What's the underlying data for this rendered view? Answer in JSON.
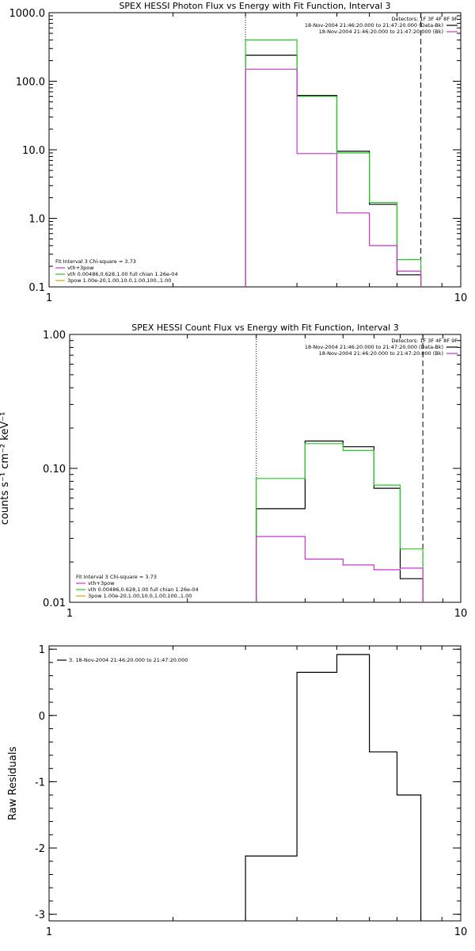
{
  "chart_data": [
    {
      "type": "line",
      "title": "SPEX HESSI Photon Flux vs Energy with Fit Function, Interval 3",
      "xscale": "log",
      "yscale": "log",
      "xlim": [
        1,
        10
      ],
      "ylim": [
        0.1,
        1000
      ],
      "xticks": [
        {
          "value": 1,
          "label": "1"
        },
        {
          "value": 10,
          "label": "10"
        }
      ],
      "yticks": [
        {
          "value": 0.1,
          "label": "0.1"
        },
        {
          "value": 1,
          "label": "1.0"
        },
        {
          "value": 10,
          "label": "10.0"
        },
        {
          "value": 100,
          "label": "100.0"
        },
        {
          "value": 1000,
          "label": "1000.0"
        }
      ],
      "xlabel": "",
      "ylabel": "",
      "vlines": [
        {
          "x": 3,
          "style": "dotted"
        },
        {
          "x": 8,
          "style": "dashed"
        }
      ],
      "bin_edges": [
        3,
        4,
        5,
        6,
        7,
        8
      ],
      "series": [
        {
          "color": "#000000",
          "values": [
            240,
            62,
            9.5,
            1.6,
            0.15
          ]
        },
        {
          "color": "#22cc22",
          "values": [
            400,
            60,
            9.0,
            1.7,
            0.25
          ]
        },
        {
          "color": "#cc33cc",
          "values": [
            150,
            8.8,
            1.2,
            0.4,
            0.17
          ]
        }
      ],
      "legend_top_right": [
        {
          "text": "Detectors: 1F 3F 4F 8F 9F",
          "color": ""
        },
        {
          "text": "18-Nov-2004 21:46:20.000 to 21:47:20.000 (Data-Bk)",
          "color": "#000000"
        },
        {
          "text": "18-Nov-2004 21:46:20.000 to 21:47:20.000 (Bk)",
          "color": "#cc33cc"
        }
      ],
      "legend_bottom_left": [
        {
          "text": "Fit Interval 3  Chi-square = 3.73",
          "color": ""
        },
        {
          "text": "vth+3pow",
          "color": "#cc33cc"
        },
        {
          "text": "vth 0.00486,0.628,1.00  full chian 1.26e-04",
          "color": "#22cc22"
        },
        {
          "text": "3pow 1.00e-20,1.00,10.0,1.00,100.,1.00",
          "color": "#ccaa00"
        }
      ]
    },
    {
      "type": "line",
      "title": "SPEX HESSI Count Flux vs Energy with Fit Function, Interval 3",
      "xscale": "log",
      "yscale": "log",
      "xlim": [
        1,
        10
      ],
      "ylim": [
        0.01,
        1
      ],
      "xticks": [
        {
          "value": 1,
          "label": "1"
        },
        {
          "value": 10,
          "label": "10"
        }
      ],
      "yticks": [
        {
          "value": 0.01,
          "label": "0.01"
        },
        {
          "value": 0.1,
          "label": "0.10"
        },
        {
          "value": 1,
          "label": "1.00"
        }
      ],
      "xlabel": "",
      "ylabel": "counts s⁻¹ cm⁻² keV⁻¹",
      "vlines": [
        {
          "x": 3,
          "style": "dotted"
        },
        {
          "x": 8,
          "style": "dashed"
        }
      ],
      "bin_edges": [
        3,
        4,
        5,
        6,
        7,
        8
      ],
      "series": [
        {
          "color": "#000000",
          "values": [
            0.05,
            0.16,
            0.145,
            0.071,
            0.015
          ]
        },
        {
          "color": "#22cc22",
          "values": [
            0.084,
            0.153,
            0.136,
            0.075,
            0.025
          ]
        },
        {
          "color": "#cc33cc",
          "values": [
            0.031,
            0.021,
            0.019,
            0.0175,
            0.018
          ]
        }
      ],
      "legend_top_right": [
        {
          "text": "Detectors: 1F 3F 4F 8F 9F",
          "color": ""
        },
        {
          "text": "18-Nov-2004 21:46:20.000 to 21:47:20.000 (Data-Bk)",
          "color": "#000000"
        },
        {
          "text": "18-Nov-2004 21:46:20.000 to 21:47:20.000 (Bk)",
          "color": "#cc33cc"
        }
      ],
      "legend_bottom_left": [
        {
          "text": "Fit Interval 3  Chi-square = 3.73",
          "color": ""
        },
        {
          "text": "vth+3pow",
          "color": "#cc33cc"
        },
        {
          "text": "vth 0.00486,0.628,1.00  full chian 1.26e-04",
          "color": "#22cc22"
        },
        {
          "text": "3pow 1.00e-20,1.00,10.0,1.00,100.,1.00",
          "color": "#ccaa00"
        }
      ]
    },
    {
      "type": "line",
      "title": "",
      "xscale": "log",
      "yscale": "linear",
      "xlim": [
        1,
        10
      ],
      "ylim": [
        -3.1,
        1.05
      ],
      "xticks": [
        {
          "value": 1,
          "label": "1"
        },
        {
          "value": 10,
          "label": "10"
        }
      ],
      "yticks": [
        {
          "value": -3,
          "label": "-3"
        },
        {
          "value": -2,
          "label": "-2"
        },
        {
          "value": -1,
          "label": "-1"
        },
        {
          "value": 0,
          "label": "0"
        },
        {
          "value": 1,
          "label": "1"
        }
      ],
      "xlabel": "",
      "ylabel": "Raw Residuals",
      "vlines": [],
      "bin_edges": [
        3,
        4,
        5,
        6,
        7,
        8
      ],
      "series": [
        {
          "color": "#000000",
          "values": [
            -2.12,
            0.65,
            0.92,
            -0.55,
            -1.2
          ]
        }
      ],
      "legend_top_right": [],
      "legend_bottom_left": [],
      "legend_top_left": [
        {
          "text": "3. 18-Nov-2004 21:46:20.000 to 21:47:20.000",
          "color": "#000000"
        }
      ]
    }
  ]
}
